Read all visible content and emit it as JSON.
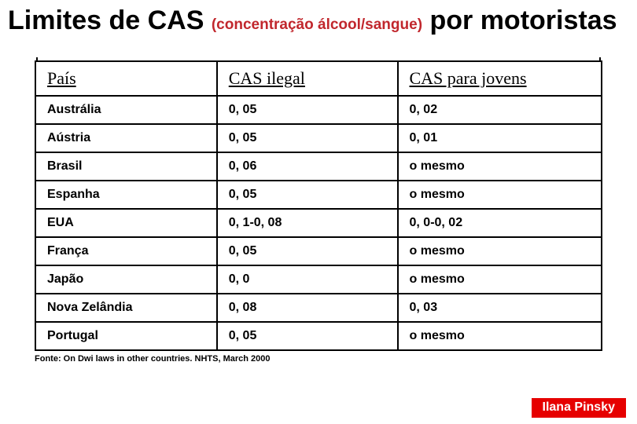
{
  "title": {
    "part1": "Limites de CAS ",
    "sub": "(concentração álcool/sangue)",
    "part2": " por motoristas"
  },
  "table": {
    "headers": {
      "country": "País",
      "illegal": "CAS ilegal",
      "young": "CAS  para jovens"
    },
    "rows": [
      {
        "country": "Austrália",
        "illegal": "0, 05",
        "young": "0, 02"
      },
      {
        "country": "Aústria",
        "illegal": "0, 05",
        "young": "0, 01"
      },
      {
        "country": "Brasil",
        "illegal": "0, 06",
        "young": "o mesmo"
      },
      {
        "country": "Espanha",
        "illegal": "0, 05",
        "young": "o mesmo"
      },
      {
        "country": "EUA",
        "illegal": "0, 1-0, 08",
        "young": "0, 0-0, 02"
      },
      {
        "country": "França",
        "illegal": "0, 05",
        "young": "o mesmo"
      },
      {
        "country": "Japão",
        "illegal": "0, 0",
        "young": "o mesmo"
      },
      {
        "country": "Nova Zelândia",
        "illegal": "0, 08",
        "young": "0, 03"
      },
      {
        "country": "Portugal",
        "illegal": "0, 05",
        "young": "o mesmo"
      }
    ]
  },
  "source": "Fonte: On Dwi laws in other countries. NHTS, March 2000",
  "author": "Ilana Pinsky",
  "colors": {
    "accent_red": "#c1272d",
    "author_bg": "#e60000",
    "border": "#000000",
    "background": "#ffffff"
  }
}
